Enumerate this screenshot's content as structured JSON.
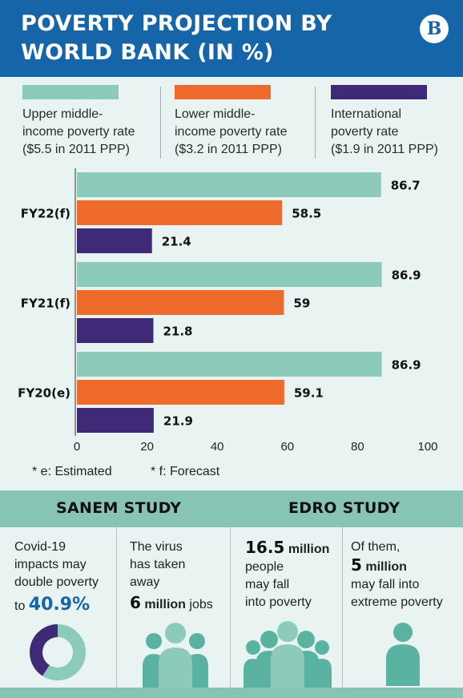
{
  "header": {
    "title": "POVERTY PROJECTION BY WORLD BANK (IN %)",
    "logo_text": "B"
  },
  "colors": {
    "upper": "#8ccbb9",
    "lower": "#ef6b2b",
    "international": "#3f2a78",
    "brand_blue": "#1565a8",
    "band": "#88c4b6"
  },
  "legend": [
    {
      "label": "Upper middle-\nincome poverty rate\n($5.5 in 2011 PPP)"
    },
    {
      "label": "Lower middle-\nincome poverty rate\n($3.2 in 2011 PPP)"
    },
    {
      "label": "International\npoverty rate\n($1.9 in 2011 PPP)"
    }
  ],
  "chart_data": {
    "type": "bar",
    "orientation": "horizontal",
    "categories": [
      "FY22(f)",
      "FY21(f)",
      "FY20(e)"
    ],
    "series": [
      {
        "name": "Upper middle-income poverty rate ($5.5 in 2011 PPP)",
        "values": [
          86.7,
          86.9,
          86.9
        ]
      },
      {
        "name": "Lower middle-income poverty rate ($3.2 in 2011 PPP)",
        "values": [
          58.5,
          59,
          59.1
        ]
      },
      {
        "name": "International poverty rate ($1.9 in 2011 PPP)",
        "values": [
          21.4,
          21.8,
          21.9
        ]
      }
    ],
    "value_labels": [
      [
        "86.7",
        "86.9",
        "86.9"
      ],
      [
        "58.5",
        "59",
        "59.1"
      ],
      [
        "21.4",
        "21.8",
        "21.9"
      ]
    ],
    "xlim": [
      0,
      100
    ],
    "xticks": [
      0,
      20,
      40,
      60,
      80,
      100
    ],
    "grid": false,
    "legend_placement": "top"
  },
  "footnotes": {
    "estimated": "* e: Estimated",
    "forecast": "* f: Forecast"
  },
  "studies": {
    "sanem_title": "SANEM STUDY",
    "edro_title": "EDRO STUDY",
    "sanem_1": {
      "line1": "Covid-19",
      "line2": "impacts may",
      "line3": "double poverty",
      "prefix": "to",
      "value": "40.9%",
      "donut_fraction": 0.409
    },
    "sanem_2": {
      "line1": "The virus",
      "line2": "has taken",
      "line3": "away",
      "value": "6",
      "unit": "million",
      "suffix": "jobs"
    },
    "edro_1": {
      "value": "16.5",
      "unit": "million",
      "line2": "people",
      "line3": "may fall",
      "line4": "into poverty"
    },
    "edro_2": {
      "line1": "Of them,",
      "value": "5",
      "unit": "million",
      "line3": "may fall into",
      "line4": "extreme poverty"
    }
  }
}
